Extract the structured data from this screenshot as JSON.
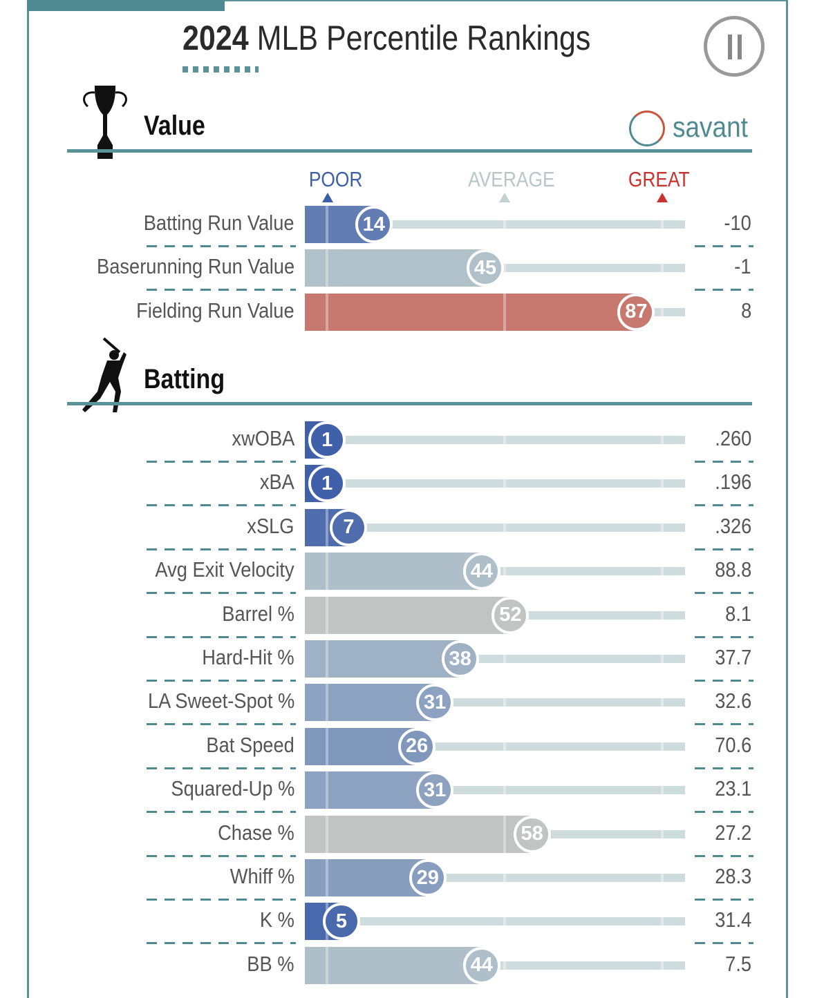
{
  "header": {
    "title_bold": "2024",
    "title_rest": "MLB Percentile Rankings",
    "brand": "savant"
  },
  "legend": {
    "poor": "POOR",
    "average": "AVERAGE",
    "great": "GREAT",
    "colors": {
      "poor": "#3d5ea8",
      "average": "#c3d0d2",
      "great": "#c9332f"
    }
  },
  "chart_data": [
    {
      "type": "bar",
      "title": "Value",
      "scale": "percentile 0-100",
      "categories": [
        "Batting Run Value",
        "Baserunning Run Value",
        "Fielding Run Value"
      ],
      "percentiles": [
        14,
        45,
        87
      ],
      "stat_values": [
        "-10",
        "-1",
        "8"
      ]
    },
    {
      "type": "bar",
      "title": "Batting",
      "scale": "percentile 0-100",
      "categories": [
        "xwOBA",
        "xBA",
        "xSLG",
        "Avg Exit Velocity",
        "Barrel %",
        "Hard-Hit %",
        "LA Sweet-Spot %",
        "Bat Speed",
        "Squared-Up %",
        "Chase %",
        "Whiff %",
        "K %",
        "BB %"
      ],
      "percentiles": [
        1,
        1,
        7,
        44,
        52,
        38,
        31,
        26,
        31,
        58,
        29,
        5,
        44
      ],
      "stat_values": [
        ".260",
        ".196",
        ".326",
        "88.8",
        "8.1",
        "37.7",
        "32.6",
        "70.6",
        "23.1",
        "27.2",
        "28.3",
        "31.4",
        "7.5"
      ]
    }
  ]
}
